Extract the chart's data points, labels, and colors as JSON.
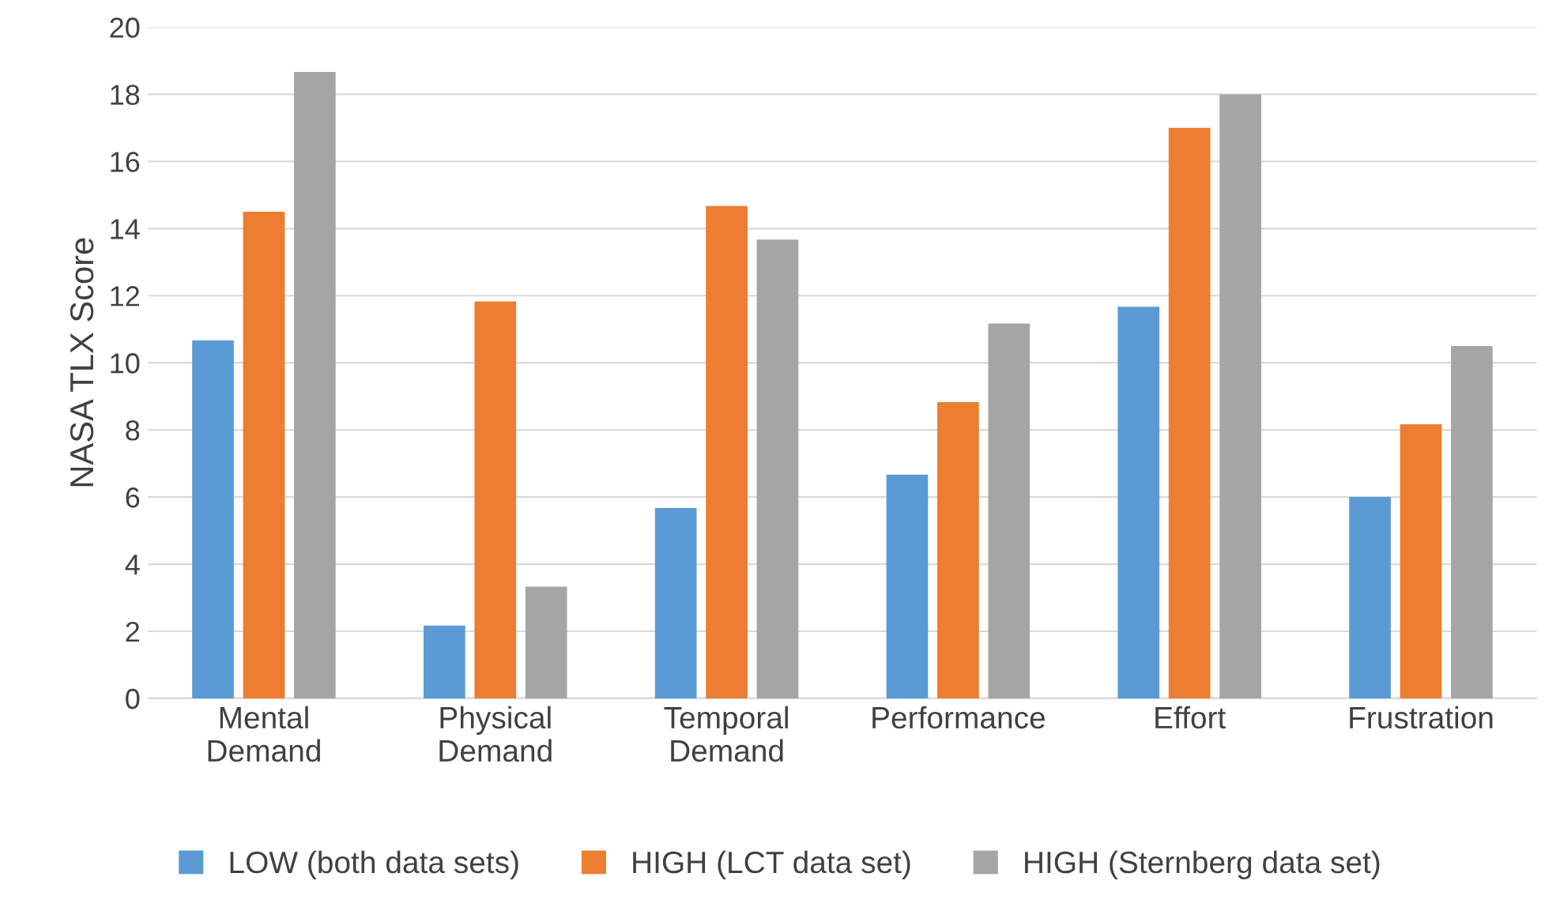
{
  "chart_data": {
    "type": "bar",
    "ylabel": "NASA TLX Score",
    "categories": [
      "Mental\nDemand",
      "Physical\nDemand",
      "Temporal\nDemand",
      "Performance",
      "Effort",
      "Frustration"
    ],
    "series": [
      {
        "name": "LOW (both data sets)",
        "color": "#5b9bd5",
        "values": [
          10.67,
          2.17,
          5.67,
          6.67,
          11.67,
          6.0
        ]
      },
      {
        "name": "HIGH (LCT data set)",
        "color": "#ed7d31",
        "values": [
          14.5,
          11.83,
          14.67,
          8.83,
          17.0,
          8.17
        ]
      },
      {
        "name": "HIGH (Sternberg data set)",
        "color": "#a5a5a5",
        "values": [
          18.67,
          3.33,
          13.67,
          11.17,
          18.0,
          10.5
        ]
      }
    ],
    "ylim": [
      0,
      20
    ],
    "yticks": [
      0,
      2,
      4,
      6,
      8,
      10,
      12,
      14,
      16,
      18,
      20
    ],
    "grid": "y",
    "legend": "bottom"
  }
}
